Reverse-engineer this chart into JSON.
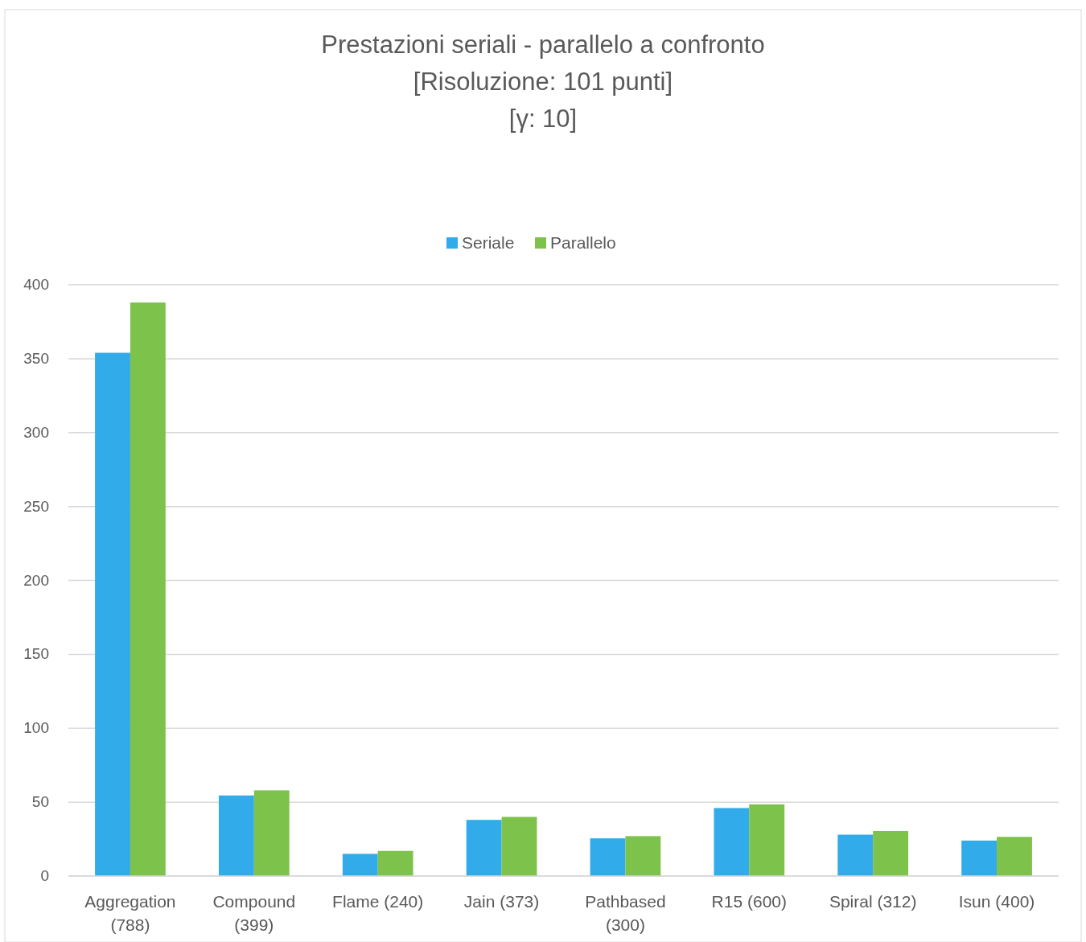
{
  "chart_data": {
    "type": "bar",
    "title": "Prestazioni seriali - parallelo a confronto",
    "subtitle": "[Risoluzione: 101 punti]\n[γ: 10]",
    "categories": [
      "Aggregation (788)",
      "Compound (399)",
      "Flame (240)",
      "Jain (373)",
      "Pathbased (300)",
      "R15 (600)",
      "Spiral (312)",
      "Isun (400)"
    ],
    "series": [
      {
        "name": "Seriale",
        "color": "#32abea",
        "values": [
          354,
          54.5,
          15,
          38,
          25.5,
          46,
          28,
          24
        ]
      },
      {
        "name": "Parallelo",
        "color": "#7dc24b",
        "values": [
          388,
          58,
          17,
          40,
          27,
          48.5,
          30.5,
          26.5
        ]
      }
    ],
    "ylim": [
      0,
      400
    ],
    "yticks": [
      0,
      50,
      100,
      150,
      200,
      250,
      300,
      350,
      400
    ],
    "grid": "y",
    "legend": "top"
  }
}
